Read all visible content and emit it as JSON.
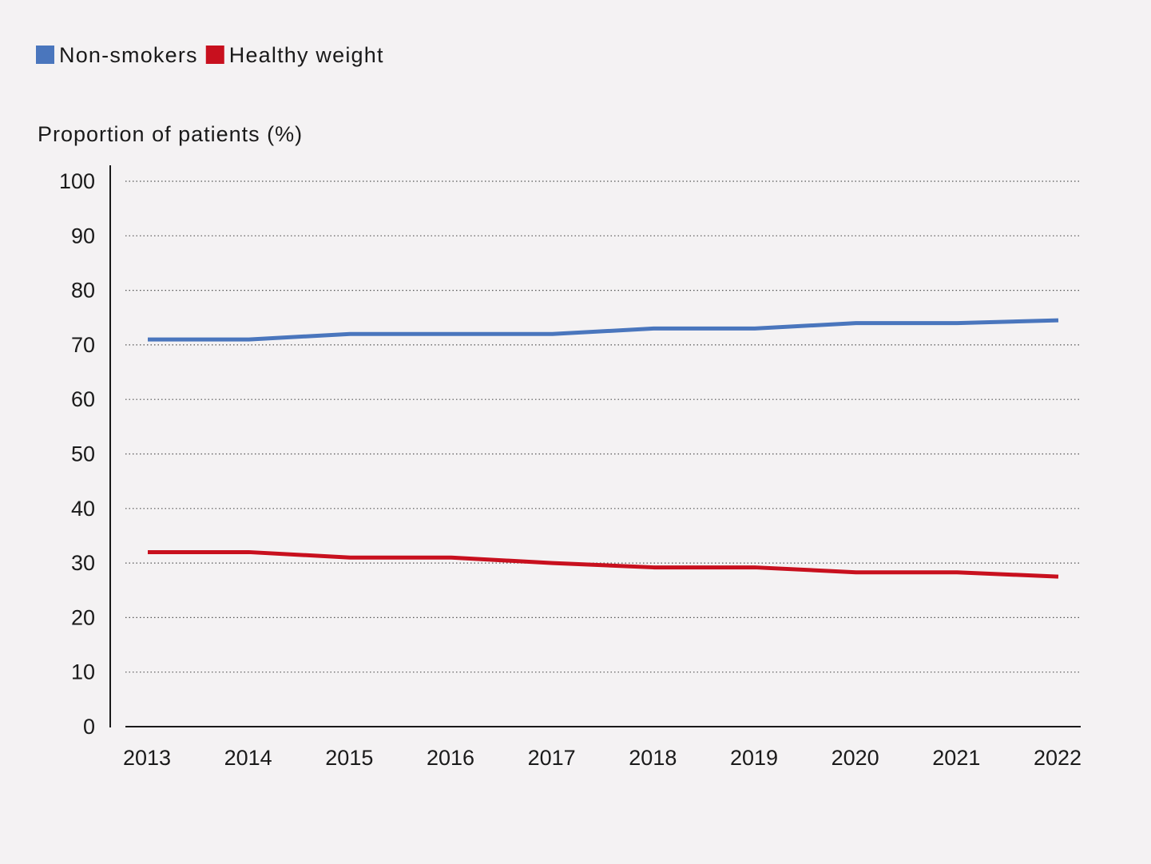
{
  "chart_data": {
    "type": "line",
    "ylabel": "Proportion of patients (%)",
    "xlabel": "",
    "x": [
      "2013",
      "2014",
      "2015",
      "2016",
      "2017",
      "2018",
      "2019",
      "2020",
      "2021",
      "2022"
    ],
    "ylim": [
      0,
      100
    ],
    "yticks": [
      0,
      10,
      20,
      30,
      40,
      50,
      60,
      70,
      80,
      90,
      100
    ],
    "grid": true,
    "legend_position": "top-left",
    "series": [
      {
        "name": "Non-smokers",
        "color": "#4a76bd",
        "values": [
          71,
          71,
          72,
          72,
          72,
          73,
          73,
          74,
          74,
          74.5
        ]
      },
      {
        "name": "Healthy weight",
        "color": "#c8101e",
        "values": [
          32,
          32,
          31,
          31,
          30,
          29.2,
          29.2,
          28.3,
          28.3,
          27.5
        ]
      }
    ]
  }
}
